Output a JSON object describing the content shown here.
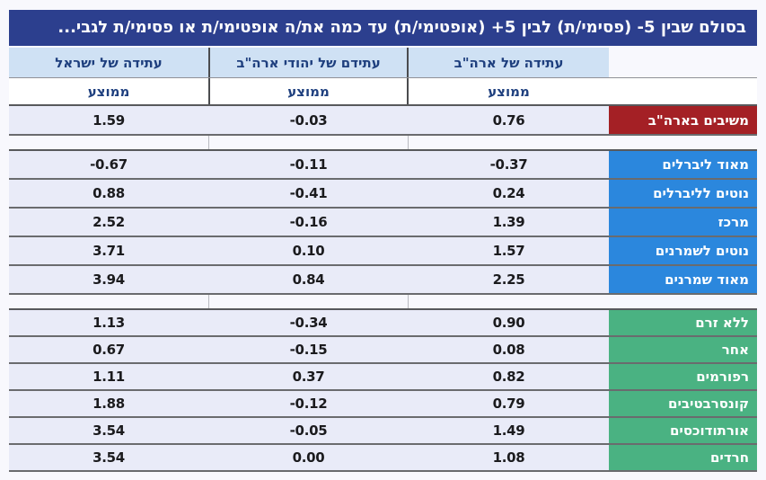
{
  "chart_data": {
    "type": "table",
    "title": "בסולם שבין 5- (פסימי/ת) לבין 5+ (אופטימי/ת) עד כמה את/ה אופטימי/ת או פסימי/ת לגבי...",
    "column_headers": [
      {
        "title": "עתידה של ארה\"ב",
        "sub": "ממוצע"
      },
      {
        "title": "עתידם של יהודי ארה\"ב",
        "sub": "ממוצע"
      },
      {
        "title": "עתידה של ישראל",
        "sub": "ממוצע"
      }
    ],
    "columns_order_note": "displayed right-to-left: group label, usa, us_jews, israel",
    "sections": [
      {
        "id": "respondents-usa",
        "label_color": "#a42025",
        "rows": [
          {
            "label": "משיבים בארה\"ב",
            "values": {
              "usa": "0.76",
              "us_jews": "-0.03",
              "israel": "1.59"
            }
          }
        ]
      },
      {
        "id": "political-orientation",
        "label_color": "#2b87dd",
        "rows": [
          {
            "label": "מאוד ליברלים",
            "values": {
              "usa": "-0.37",
              "us_jews": "-0.11",
              "israel": "-0.67"
            }
          },
          {
            "label": "נוטים לליברלים",
            "values": {
              "usa": "0.24",
              "us_jews": "-0.41",
              "israel": "0.88"
            }
          },
          {
            "label": "מרכז",
            "values": {
              "usa": "1.39",
              "us_jews": "-0.16",
              "israel": "2.52"
            }
          },
          {
            "label": "נוטים לשמרנים",
            "values": {
              "usa": "1.57",
              "us_jews": "0.10",
              "israel": "3.71"
            }
          },
          {
            "label": "מאוד שמרנים",
            "values": {
              "usa": "2.25",
              "us_jews": "0.84",
              "israel": "3.94"
            }
          }
        ]
      },
      {
        "id": "jewish-denomination",
        "label_color": "#4ab282",
        "rows": [
          {
            "label": "ללא זרם",
            "values": {
              "usa": "0.90",
              "us_jews": "-0.34",
              "israel": "1.13"
            }
          },
          {
            "label": "אחר",
            "values": {
              "usa": "0.08",
              "us_jews": "-0.15",
              "israel": "0.67"
            }
          },
          {
            "label": "רפורמים",
            "values": {
              "usa": "0.82",
              "us_jews": "0.37",
              "israel": "1.11"
            }
          },
          {
            "label": "קונסרבטיבים",
            "values": {
              "usa": "0.79",
              "us_jews": "-0.12",
              "israel": "1.88"
            }
          },
          {
            "label": "אורתודוכסים",
            "values": {
              "usa": "1.49",
              "us_jews": "-0.05",
              "israel": "3.54"
            }
          },
          {
            "label": "חרדים",
            "values": {
              "usa": "1.08",
              "us_jews": "0.00",
              "israel": "3.54"
            }
          }
        ]
      }
    ]
  },
  "colors": {
    "page_bg": "#f8f8fd",
    "title_bar_bg": "#2c3f8e",
    "title_text": "#ffffff",
    "header_bg": "#cfe1f4",
    "header_text": "#1e3f7e",
    "value_cell_bg": "#e9ebf8",
    "value_text": "#1b1b1e",
    "respondents_label_bg": "#a42025",
    "political_label_bg": "#2b87dd",
    "denomination_label_bg": "#4ab282",
    "grid_line": "#6a6b6e"
  }
}
